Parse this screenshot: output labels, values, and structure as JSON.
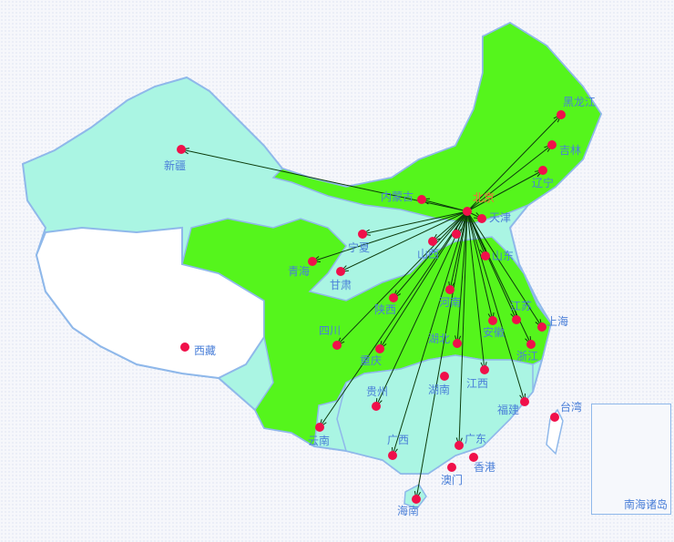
{
  "map": {
    "origin": "北京",
    "colors": {
      "covered": "#55f51c",
      "uncovered": "#aaf5e3",
      "none": "#ffffff",
      "border": "#8fb8ea",
      "dot": "#f0104a",
      "label": "#4a7fd8",
      "origin_label": "#ff6040",
      "flow_line": "#0a3a0a"
    },
    "places": [
      {
        "name": "北京"
      },
      {
        "name": "天津"
      },
      {
        "name": "黑龙江"
      },
      {
        "name": "吉林"
      },
      {
        "name": "辽宁"
      },
      {
        "name": "内蒙古"
      },
      {
        "name": "新疆"
      },
      {
        "name": "宁夏"
      },
      {
        "name": "青海"
      },
      {
        "name": "甘肃"
      },
      {
        "name": "山西"
      },
      {
        "name": "河北"
      },
      {
        "name": "山东"
      },
      {
        "name": "陕西"
      },
      {
        "name": "河南"
      },
      {
        "name": "江苏"
      },
      {
        "name": "上海"
      },
      {
        "name": "安徽"
      },
      {
        "name": "浙江"
      },
      {
        "name": "四川"
      },
      {
        "name": "重庆"
      },
      {
        "name": "湖北"
      },
      {
        "name": "西藏"
      },
      {
        "name": "贵州"
      },
      {
        "name": "湖南"
      },
      {
        "name": "江西"
      },
      {
        "name": "福建"
      },
      {
        "name": "台湾"
      },
      {
        "name": "云南"
      },
      {
        "name": "广西"
      },
      {
        "name": "广东"
      },
      {
        "name": "香港"
      },
      {
        "name": "澳门"
      },
      {
        "name": "海南"
      }
    ],
    "flows_to": [
      "天津",
      "黑龙江",
      "吉林",
      "辽宁",
      "内蒙古",
      "新疆",
      "宁夏",
      "青海",
      "甘肃",
      "山西",
      "河北",
      "山东",
      "陕西",
      "河南",
      "江苏",
      "上海",
      "安徽",
      "浙江",
      "四川",
      "重庆",
      "湖北",
      "贵州",
      "江西",
      "福建",
      "云南",
      "广西",
      "广东",
      "海南"
    ],
    "inset_title": "南海诸岛"
  }
}
